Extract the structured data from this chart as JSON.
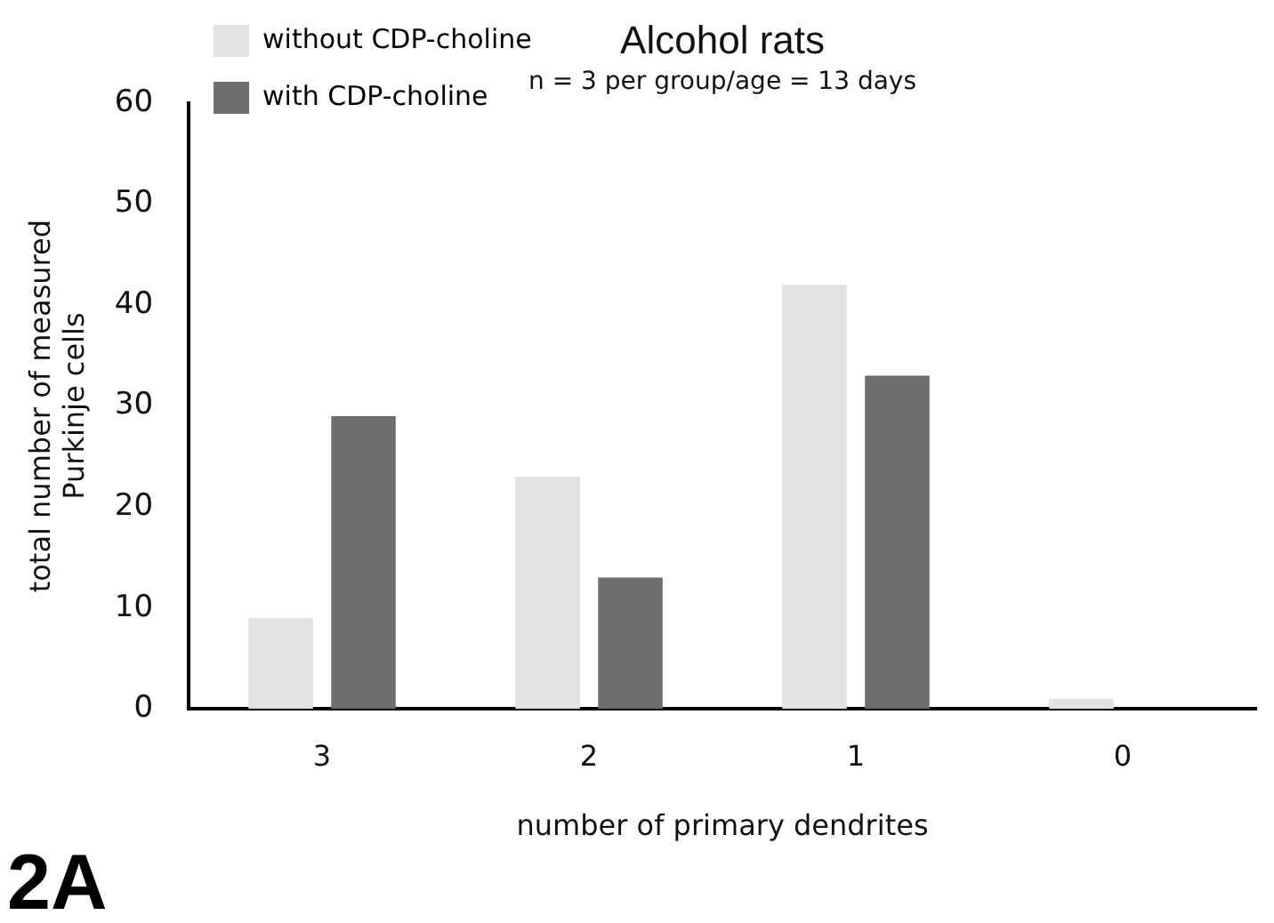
{
  "chart_data": {
    "type": "bar",
    "title": "Alcohol rats",
    "subtitle": "n = 3 per group/age = 13 days",
    "xlabel": "number of primary dendrites",
    "ylabel": "total number of measured\nPurkinje cells",
    "categories": [
      "3",
      "2",
      "1",
      "0"
    ],
    "series": [
      {
        "name": "without CDP-choline",
        "color": "#e2e2e2",
        "values": [
          9,
          23,
          42,
          1
        ]
      },
      {
        "name": "with CDP-choline",
        "color": "#6e6e6e",
        "values": [
          29,
          13,
          33,
          0
        ]
      }
    ],
    "ylim": [
      0,
      60
    ],
    "yticks": [
      0,
      10,
      20,
      30,
      40,
      50,
      60
    ],
    "grid": false,
    "legend": "top left",
    "annotations": [
      "2A"
    ]
  }
}
